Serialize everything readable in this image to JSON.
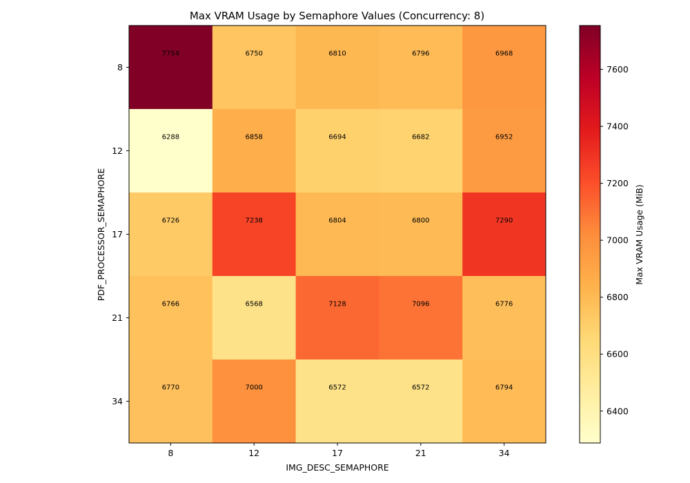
{
  "chart_data": {
    "type": "heatmap",
    "title": "Max VRAM Usage by Semaphore Values (Concurrency: 8)",
    "xlabel": "IMG_DESC_SEMAPHORE",
    "ylabel": "PDF_PROCESSOR_SEMAPHORE",
    "x_categories": [
      "8",
      "12",
      "17",
      "21",
      "34"
    ],
    "y_categories": [
      "8",
      "12",
      "17",
      "21",
      "34"
    ],
    "values": [
      [
        7754,
        6750,
        6810,
        6796,
        6968
      ],
      [
        6288,
        6858,
        6694,
        6682,
        6952
      ],
      [
        6726,
        7238,
        6804,
        6800,
        7290
      ],
      [
        6766,
        6568,
        7128,
        7096,
        6776
      ],
      [
        6770,
        7000,
        6572,
        6572,
        6794
      ]
    ],
    "colorbar": {
      "label": "Max VRAM Usage (MiB)",
      "range": [
        6288,
        7754
      ],
      "ticks": [
        6400,
        6600,
        6800,
        7000,
        7200,
        7400,
        7600
      ],
      "colormap": [
        "#ffffcc",
        "#ffeda0",
        "#fed976",
        "#feb24c",
        "#fd8d3c",
        "#fc4e2a",
        "#e31a1c",
        "#bd0026",
        "#800026"
      ]
    },
    "grid": false
  }
}
